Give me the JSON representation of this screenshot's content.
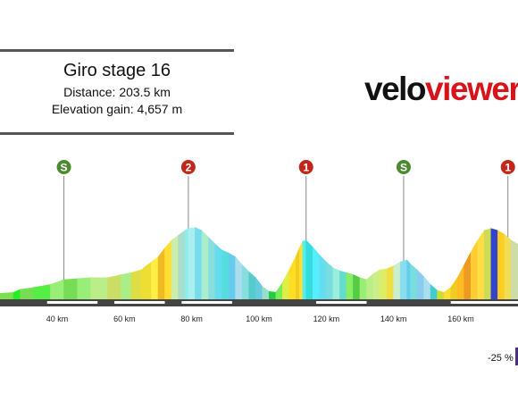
{
  "header": {
    "title": "Giro stage 16",
    "distance_line": "Distance: 203.5 km",
    "elevation_line": "Elevation gain: 4,657 m"
  },
  "logo": {
    "part1": "velo",
    "part2": "viewer",
    "color1": "#111111",
    "color2": "#d8141b"
  },
  "gradient_scale": {
    "label": "-25 %",
    "color": "#4a2c8c"
  },
  "colors": {
    "sprint": "#4c8a32",
    "climb": "#c0281c",
    "ground": "#444444",
    "label_text": "#222222"
  },
  "chart_data": {
    "type": "area",
    "title": "Giro stage 16",
    "xlabel": "",
    "ylabel": "",
    "x_unit": "km",
    "xlim": [
      23,
      177
    ],
    "x_ticks": [
      40,
      60,
      80,
      100,
      120,
      140,
      160
    ],
    "tick_labels": [
      "40 km",
      "60 km",
      "80 km",
      "100 km",
      "120 km",
      "140 km",
      "160 km"
    ],
    "elevation_profile": {
      "x": [
        23,
        27,
        29,
        33,
        38,
        42,
        46,
        50,
        55,
        59,
        62,
        65,
        68,
        70,
        72,
        74,
        76,
        78,
        79,
        81,
        83,
        85,
        87,
        89,
        91,
        93,
        95,
        97,
        99,
        101,
        103,
        105,
        107,
        109,
        111,
        112,
        113,
        114,
        116,
        118,
        120,
        122,
        124,
        126,
        128,
        130,
        132,
        134,
        136,
        138,
        140,
        142,
        144,
        145,
        147,
        149,
        151,
        153,
        155,
        157,
        159,
        161,
        163,
        165,
        167,
        169,
        171,
        173,
        175,
        177
      ],
      "y": [
        0.06,
        0.07,
        0.1,
        0.12,
        0.15,
        0.2,
        0.21,
        0.22,
        0.22,
        0.25,
        0.27,
        0.3,
        0.38,
        0.43,
        0.52,
        0.6,
        0.65,
        0.7,
        0.72,
        0.73,
        0.7,
        0.63,
        0.56,
        0.5,
        0.47,
        0.43,
        0.35,
        0.28,
        0.22,
        0.13,
        0.08,
        0.07,
        0.17,
        0.3,
        0.44,
        0.52,
        0.59,
        0.6,
        0.53,
        0.45,
        0.38,
        0.32,
        0.29,
        0.27,
        0.25,
        0.22,
        0.2,
        0.26,
        0.3,
        0.31,
        0.34,
        0.38,
        0.4,
        0.36,
        0.3,
        0.23,
        0.15,
        0.09,
        0.07,
        0.12,
        0.22,
        0.35,
        0.48,
        0.6,
        0.7,
        0.72,
        0.7,
        0.66,
        0.6,
        0.56
      ],
      "gradient_colors": [
        "#7be050",
        "#22ee22",
        "#77dd55",
        "#55ee44",
        "#99ee77",
        "#77dd55",
        "#99ee77",
        "#bbee88",
        "#ccdd66",
        "#aaee88",
        "#dddd44",
        "#eedd33",
        "#ffee44",
        "#eebb22",
        "#ffdd33",
        "#cceeaa",
        "#aaddcc",
        "#88eeee",
        "#aaeeee",
        "#77ddee",
        "#aaeecc",
        "#88dddd",
        "#66ddee",
        "#55dddd",
        "#66ccee",
        "#aaddee",
        "#88dddd",
        "#55cccc",
        "#66ccdd",
        "#99ddcc",
        "#22cc44",
        "#77ee55",
        "#ddee44",
        "#ffdd22",
        "#eecc22",
        "#ffdd33",
        "#55eeee",
        "#33dddd",
        "#55eeff",
        "#66ddee",
        "#77dddd",
        "#99eedd",
        "#66ddcc",
        "#88ee66",
        "#55cc44",
        "#99ee77",
        "#bbee88",
        "#ccee88",
        "#ddee66",
        "#eedd44",
        "#cceecc",
        "#88ddee",
        "#66ccee",
        "#77dddd",
        "#88ccee",
        "#aaddee",
        "#44cccc",
        "#ccdd33",
        "#ffdd33",
        "#eecc22",
        "#ffbb22",
        "#ee9922",
        "#ffcc33",
        "#ffdd44",
        "#ccdd55",
        "#3344cc",
        "#ffcc22",
        "#eedd55",
        "#ccddaa",
        "#cccccc"
      ]
    },
    "markers": [
      {
        "type": "sprint",
        "label": "S",
        "x": 42
      },
      {
        "type": "climb",
        "label": "2",
        "x": 79
      },
      {
        "type": "climb",
        "label": "1",
        "x": 114
      },
      {
        "type": "sprint",
        "label": "S",
        "x": 143
      },
      {
        "type": "climb",
        "label": "1",
        "x": 174
      }
    ],
    "grid": false,
    "legend": "none"
  }
}
